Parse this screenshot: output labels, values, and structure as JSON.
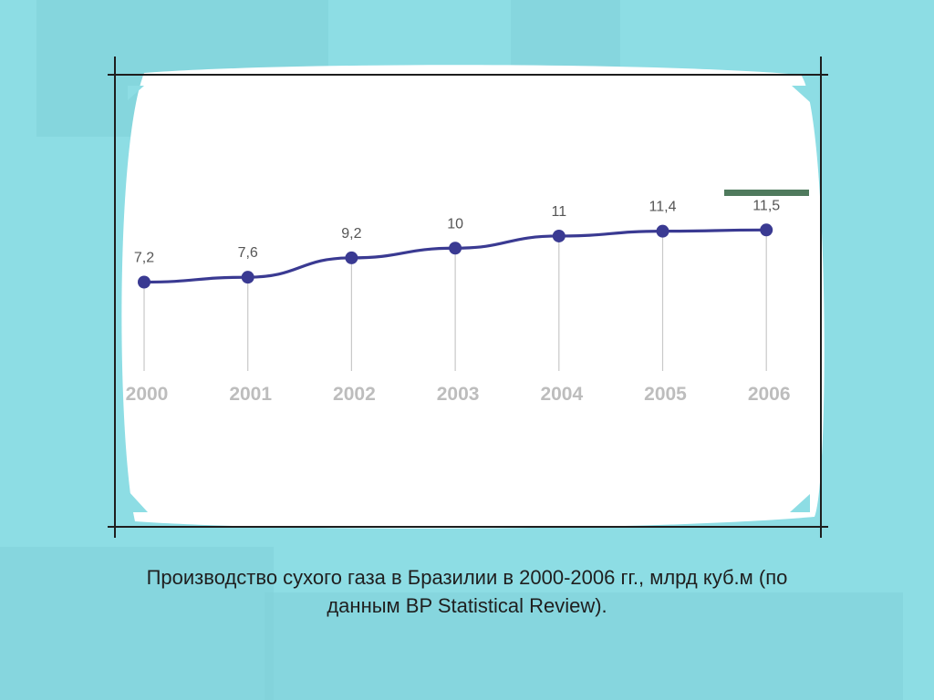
{
  "colors": {
    "background": "#8ddde4",
    "card": "#ffffff",
    "line": "#3a3a92",
    "point": "#3a3a92",
    "drop_line": "#c8c8c8",
    "tick_label": "#bdbdbd",
    "value_label": "#555555",
    "frame": "#1e1e1e",
    "accent_bar": "#4f7a5d"
  },
  "chart_data": {
    "type": "line",
    "title": "",
    "xlabel": "",
    "ylabel": "",
    "categories": [
      "2000",
      "2001",
      "2002",
      "2003",
      "2004",
      "2005",
      "2006"
    ],
    "values": [
      7.2,
      7.6,
      9.2,
      10,
      11,
      11.4,
      11.5
    ],
    "value_labels": [
      "7,2",
      "7,6",
      "9,2",
      "10",
      "11",
      "11,4",
      "11,5"
    ],
    "ylim": [
      0,
      12
    ],
    "grid": false,
    "legend": "none"
  },
  "caption": {
    "line1": "Производство сухого газа в Бразилии в 2000-2006 гг., млрд куб.м (по",
    "line2": "данным BP Statistical Review)."
  }
}
